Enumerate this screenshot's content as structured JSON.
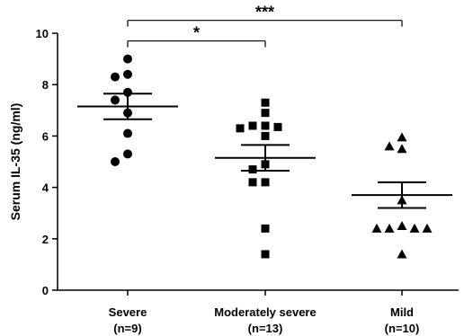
{
  "chart_data": {
    "type": "scatter",
    "ylabel": "Serum IL-35 (ng/ml)",
    "ylim": [
      0,
      10
    ],
    "yticks": [
      0,
      2,
      4,
      6,
      8,
      10
    ],
    "yticks_labels": [
      "0",
      "2",
      "4",
      "6",
      "8",
      "10"
    ],
    "grid": false,
    "groups": [
      {
        "label_line1": "Severe",
        "label_line2": "(n=9)",
        "marker": "circle",
        "values": [
          9.0,
          8.4,
          8.3,
          7.7,
          7.4,
          6.9,
          6.1,
          5.3,
          5.0
        ],
        "mean": 7.15,
        "sem_low": 6.65,
        "sem_high": 7.65
      },
      {
        "label_line1": "Moderately severe",
        "label_line2": "(n=13)",
        "marker": "square",
        "values": [
          7.3,
          6.9,
          6.4,
          6.4,
          6.35,
          6.3,
          6.0,
          4.9,
          4.7,
          4.2,
          4.2,
          2.4,
          1.4
        ],
        "mean": 5.15,
        "sem_low": 4.65,
        "sem_high": 5.65
      },
      {
        "label_line1": "Mild",
        "label_line2": "(n=10)",
        "marker": "triangle",
        "values": [
          5.95,
          5.6,
          5.5,
          3.5,
          2.5,
          2.4,
          2.4,
          2.4,
          2.4,
          1.4
        ],
        "mean": 3.7,
        "sem_low": 3.2,
        "sem_high": 4.2
      }
    ],
    "significance": [
      {
        "from": 0,
        "to": 1,
        "label": "*",
        "y": 9.7
      },
      {
        "from": 0,
        "to": 2,
        "label": "***",
        "y": 10.5
      }
    ]
  }
}
